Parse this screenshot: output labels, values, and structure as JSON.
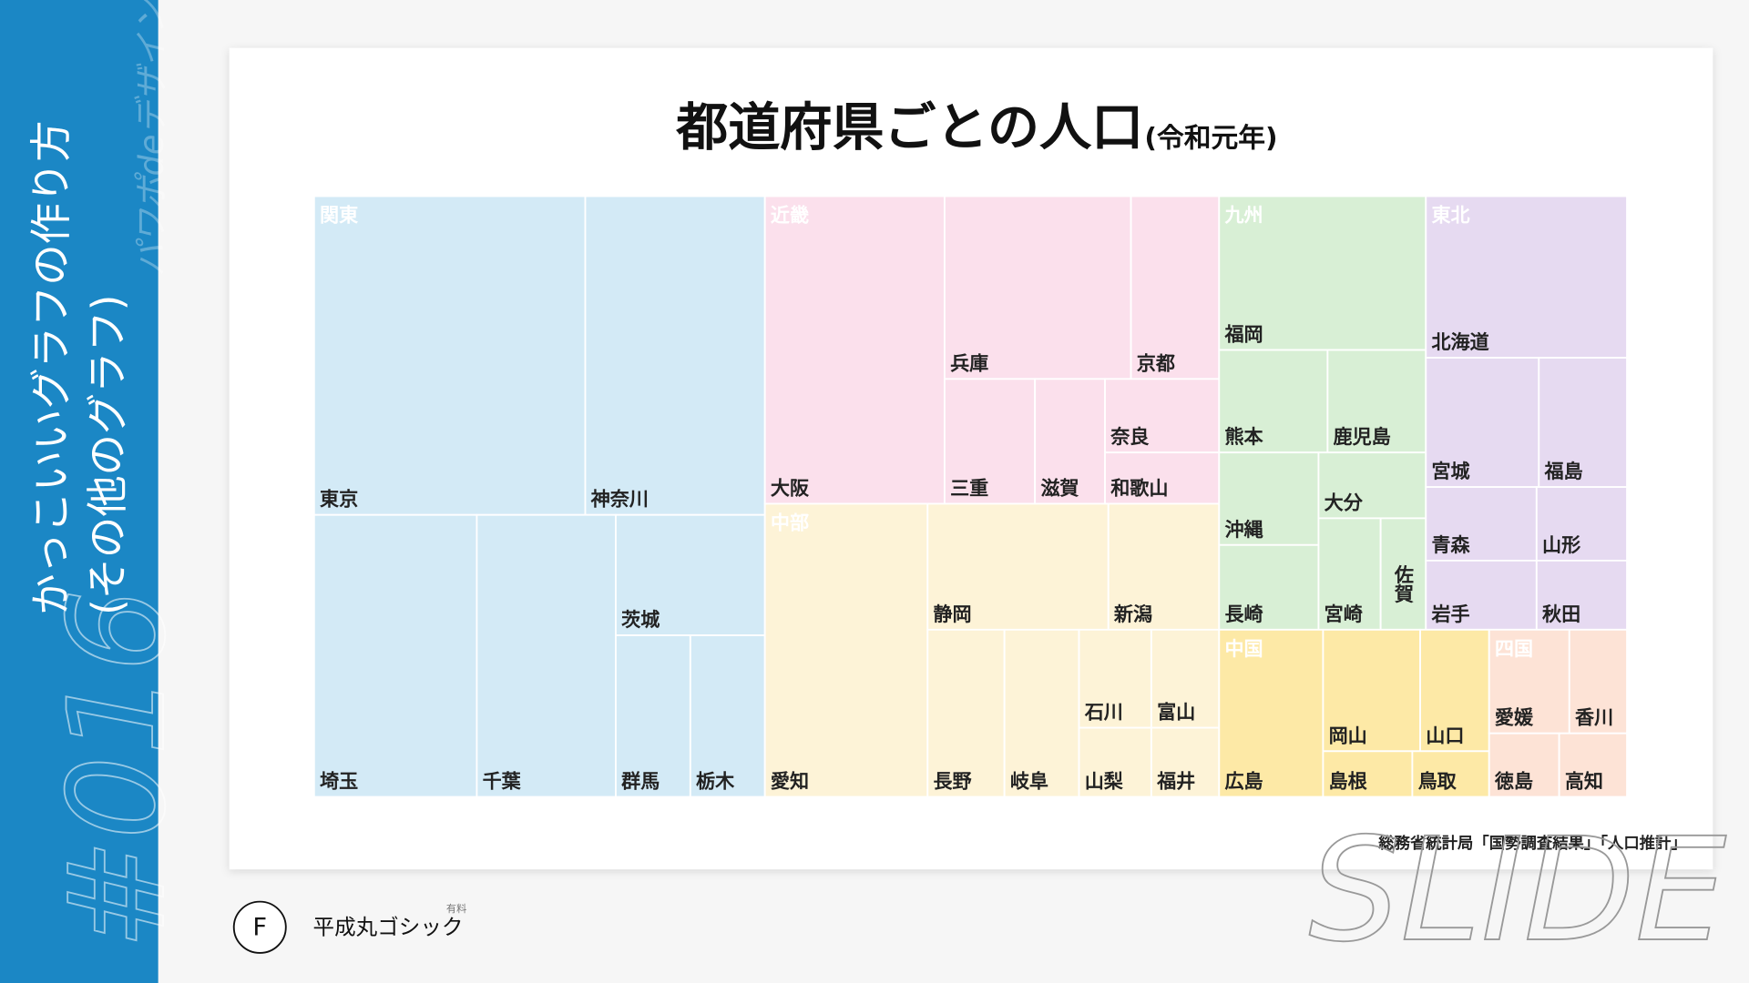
{
  "sidebar": {
    "title": "かっこいいグラフの作り方",
    "subtitle": "(その他のグラフ)",
    "number": "#016",
    "brand": "パワポdeデザイン"
  },
  "slide": {
    "title": "都道府県ごとの人口",
    "title_note": "(令和元年)",
    "source": "総務省統計局「国勢調査結果」「人口推計」",
    "regions": [
      {
        "name": "関東",
        "color": "#d3eaf6",
        "prefectures": [
          "東京",
          "神奈川",
          "埼玉",
          "千葉",
          "茨城",
          "群馬",
          "栃木"
        ]
      },
      {
        "name": "近畿",
        "color": "#fbe0ec",
        "prefectures": [
          "大阪",
          "兵庫",
          "京都",
          "三重",
          "滋賀",
          "奈良",
          "和歌山"
        ]
      },
      {
        "name": "中部",
        "color": "#fdf3d7",
        "prefectures": [
          "愛知",
          "静岡",
          "新潟",
          "長野",
          "岐阜",
          "石川",
          "富山",
          "山梨",
          "福井"
        ]
      },
      {
        "name": "九州",
        "color": "#d8efd5",
        "prefectures": [
          "福岡",
          "熊本",
          "鹿児島",
          "沖縄",
          "大分",
          "長崎",
          "宮崎",
          "佐賀"
        ]
      },
      {
        "name": "東北",
        "color": "#e6daf1",
        "prefectures": [
          "北海道",
          "宮城",
          "福島",
          "青森",
          "山形",
          "岩手",
          "秋田"
        ]
      },
      {
        "name": "中国",
        "color": "#fde9a6",
        "prefectures": [
          "広島",
          "岡山",
          "山口",
          "島根",
          "鳥取"
        ]
      },
      {
        "name": "四国",
        "color": "#fde3d6",
        "prefectures": [
          "愛媛",
          "香川",
          "徳島",
          "高知"
        ]
      }
    ]
  },
  "footer": {
    "font_badge": "F",
    "font_name": "平成丸ゴシック",
    "font_note": "有料",
    "watermark": "SLIDE"
  }
}
